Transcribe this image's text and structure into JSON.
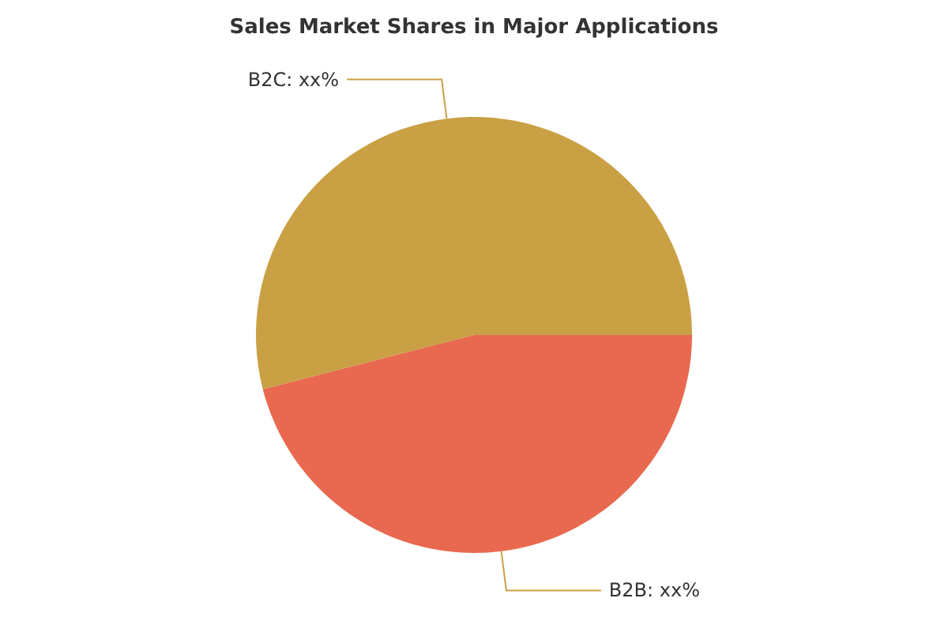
{
  "chart_data": {
    "type": "pie",
    "title": "Sales Market Shares in Major Applications",
    "categories": [
      "B2B",
      "B2C"
    ],
    "values": [
      46,
      54
    ],
    "value_labels": [
      "xx%",
      "xx%"
    ],
    "colors": [
      "#e8694f",
      "#c9a044"
    ],
    "legend": false
  }
}
